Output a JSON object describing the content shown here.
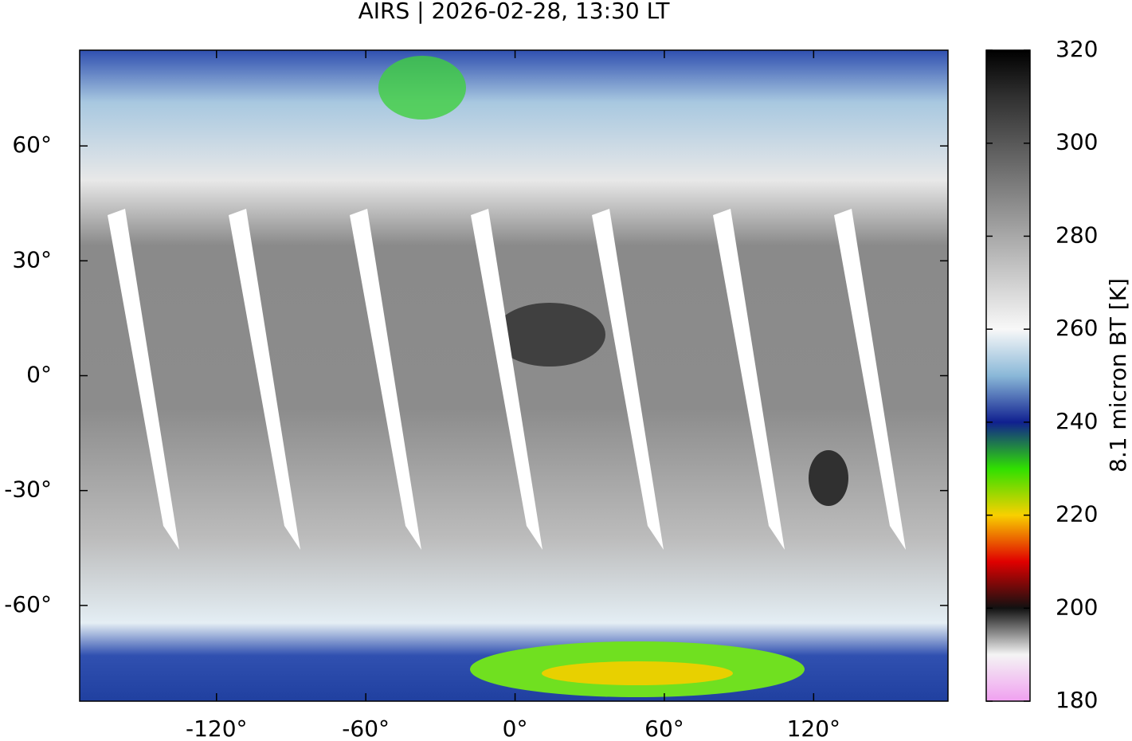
{
  "map": {
    "title": "AIRS | 2026-02-28, 13:30 LT",
    "xlim": [
      -175,
      174
    ],
    "ylim": [
      -85,
      85
    ],
    "xticks": [
      {
        "value": -120,
        "label": "-120°"
      },
      {
        "value": -60,
        "label": "-60°"
      },
      {
        "value": 0,
        "label": "0°"
      },
      {
        "value": 60,
        "label": "60°"
      },
      {
        "value": 120,
        "label": "120°"
      }
    ],
    "yticks": [
      {
        "value": 60,
        "label": "60°"
      },
      {
        "value": 30,
        "label": "30°"
      },
      {
        "value": 0,
        "label": "0°"
      },
      {
        "value": -30,
        "label": "-30°"
      },
      {
        "value": -60,
        "label": "-60°"
      }
    ],
    "colorbar": {
      "label": "8.1 micron BT [K]",
      "lim": [
        180,
        320
      ],
      "ticks": [
        320,
        300,
        280,
        260,
        240,
        220,
        200,
        180
      ],
      "colors": [
        "#f0a0f0",
        "#f4f4f4",
        "#111111",
        "#e00000",
        "#f8d000",
        "#30e000",
        "#102090",
        "#8ab8d8",
        "#f8f8f8",
        "#d0d0d0",
        "#a8a8a8",
        "#808080",
        "#585858",
        "#303030",
        "#000000"
      ]
    }
  }
}
